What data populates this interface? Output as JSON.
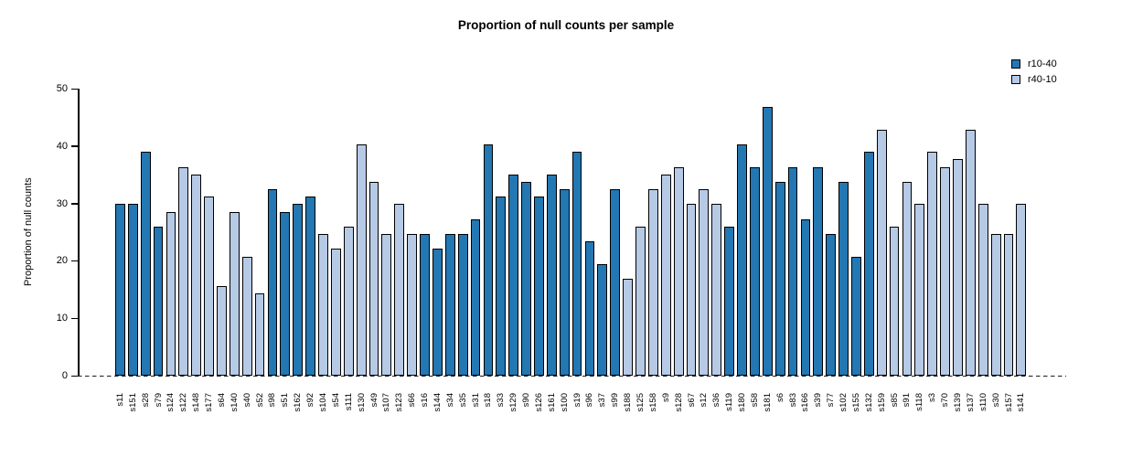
{
  "chart_data": {
    "type": "bar",
    "title": "Proportion of null counts per sample",
    "xlabel": "",
    "ylabel": "Proportion of null counts",
    "ylim": [
      0,
      50
    ],
    "yticks": [
      0,
      10,
      20,
      30,
      40,
      50
    ],
    "grid": false,
    "zero_line_style": "dashed",
    "legend_position": "top-right",
    "series": [
      {
        "name": "r10-40",
        "color": "#2377b2"
      },
      {
        "name": "r40-10",
        "color": "#b6cae6"
      }
    ],
    "bars": [
      {
        "sample": "s11",
        "value": 29.87,
        "series": "r10-40"
      },
      {
        "sample": "s151",
        "value": 29.87,
        "series": "r10-40"
      },
      {
        "sample": "s28",
        "value": 38.96,
        "series": "r10-40"
      },
      {
        "sample": "s79",
        "value": 25.97,
        "series": "r10-40"
      },
      {
        "sample": "s124",
        "value": 28.57,
        "series": "r40-10"
      },
      {
        "sample": "s122",
        "value": 36.36,
        "series": "r40-10"
      },
      {
        "sample": "s148",
        "value": 35.06,
        "series": "r40-10"
      },
      {
        "sample": "s177",
        "value": 31.17,
        "series": "r40-10"
      },
      {
        "sample": "s64",
        "value": 15.58,
        "series": "r40-10"
      },
      {
        "sample": "s140",
        "value": 28.57,
        "series": "r40-10"
      },
      {
        "sample": "s40",
        "value": 20.78,
        "series": "r40-10"
      },
      {
        "sample": "s52",
        "value": 14.29,
        "series": "r40-10"
      },
      {
        "sample": "s98",
        "value": 32.47,
        "series": "r10-40"
      },
      {
        "sample": "s51",
        "value": 28.57,
        "series": "r10-40"
      },
      {
        "sample": "s162",
        "value": 29.87,
        "series": "r10-40"
      },
      {
        "sample": "s92",
        "value": 31.17,
        "series": "r10-40"
      },
      {
        "sample": "s104",
        "value": 24.68,
        "series": "r40-10"
      },
      {
        "sample": "s54",
        "value": 22.08,
        "series": "r40-10"
      },
      {
        "sample": "s111",
        "value": 25.97,
        "series": "r40-10"
      },
      {
        "sample": "s130",
        "value": 40.26,
        "series": "r40-10"
      },
      {
        "sample": "s49",
        "value": 33.77,
        "series": "r40-10"
      },
      {
        "sample": "s107",
        "value": 24.68,
        "series": "r40-10"
      },
      {
        "sample": "s123",
        "value": 29.87,
        "series": "r40-10"
      },
      {
        "sample": "s66",
        "value": 24.68,
        "series": "r40-10"
      },
      {
        "sample": "s16",
        "value": 24.68,
        "series": "r10-40"
      },
      {
        "sample": "s144",
        "value": 22.08,
        "series": "r10-40"
      },
      {
        "sample": "s34",
        "value": 24.68,
        "series": "r10-40"
      },
      {
        "sample": "s35",
        "value": 24.68,
        "series": "r10-40"
      },
      {
        "sample": "s31",
        "value": 27.27,
        "series": "r10-40"
      },
      {
        "sample": "s18",
        "value": 40.26,
        "series": "r10-40"
      },
      {
        "sample": "s33",
        "value": 31.17,
        "series": "r10-40"
      },
      {
        "sample": "s129",
        "value": 35.06,
        "series": "r10-40"
      },
      {
        "sample": "s90",
        "value": 33.77,
        "series": "r10-40"
      },
      {
        "sample": "s126",
        "value": 31.17,
        "series": "r10-40"
      },
      {
        "sample": "s161",
        "value": 35.06,
        "series": "r10-40"
      },
      {
        "sample": "s100",
        "value": 32.47,
        "series": "r10-40"
      },
      {
        "sample": "s19",
        "value": 38.96,
        "series": "r10-40"
      },
      {
        "sample": "s96",
        "value": 23.38,
        "series": "r10-40"
      },
      {
        "sample": "s37",
        "value": 19.48,
        "series": "r10-40"
      },
      {
        "sample": "s99",
        "value": 32.47,
        "series": "r10-40"
      },
      {
        "sample": "s188",
        "value": 16.88,
        "series": "r40-10"
      },
      {
        "sample": "s125",
        "value": 25.97,
        "series": "r40-10"
      },
      {
        "sample": "s158",
        "value": 32.47,
        "series": "r40-10"
      },
      {
        "sample": "s9",
        "value": 35.06,
        "series": "r40-10"
      },
      {
        "sample": "s128",
        "value": 36.36,
        "series": "r40-10"
      },
      {
        "sample": "s67",
        "value": 29.87,
        "series": "r40-10"
      },
      {
        "sample": "s12",
        "value": 32.47,
        "series": "r40-10"
      },
      {
        "sample": "s36",
        "value": 29.87,
        "series": "r40-10"
      },
      {
        "sample": "s119",
        "value": 25.97,
        "series": "r10-40"
      },
      {
        "sample": "s180",
        "value": 40.26,
        "series": "r10-40"
      },
      {
        "sample": "s58",
        "value": 36.36,
        "series": "r10-40"
      },
      {
        "sample": "s181",
        "value": 46.75,
        "series": "r10-40"
      },
      {
        "sample": "s6",
        "value": 33.77,
        "series": "r10-40"
      },
      {
        "sample": "s83",
        "value": 36.36,
        "series": "r10-40"
      },
      {
        "sample": "s166",
        "value": 27.27,
        "series": "r10-40"
      },
      {
        "sample": "s39",
        "value": 36.36,
        "series": "r10-40"
      },
      {
        "sample": "s77",
        "value": 24.68,
        "series": "r10-40"
      },
      {
        "sample": "s102",
        "value": 33.77,
        "series": "r10-40"
      },
      {
        "sample": "s155",
        "value": 20.78,
        "series": "r10-40"
      },
      {
        "sample": "s132",
        "value": 38.96,
        "series": "r10-40"
      },
      {
        "sample": "s159",
        "value": 42.86,
        "series": "r40-10"
      },
      {
        "sample": "s85",
        "value": 25.97,
        "series": "r40-10"
      },
      {
        "sample": "s91",
        "value": 33.77,
        "series": "r40-10"
      },
      {
        "sample": "s118",
        "value": 29.87,
        "series": "r40-10"
      },
      {
        "sample": "s3",
        "value": 38.96,
        "series": "r40-10"
      },
      {
        "sample": "s70",
        "value": 36.36,
        "series": "r40-10"
      },
      {
        "sample": "s139",
        "value": 37.66,
        "series": "r40-10"
      },
      {
        "sample": "s137",
        "value": 42.86,
        "series": "r40-10"
      },
      {
        "sample": "s110",
        "value": 29.87,
        "series": "r40-10"
      },
      {
        "sample": "s30",
        "value": 24.68,
        "series": "r40-10"
      },
      {
        "sample": "s157",
        "value": 24.68,
        "series": "r40-10"
      },
      {
        "sample": "s141",
        "value": 29.87,
        "series": "r40-10"
      }
    ]
  }
}
